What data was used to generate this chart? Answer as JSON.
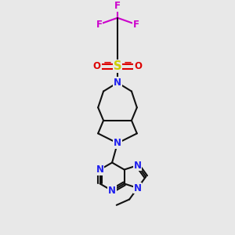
{
  "bg": "#e8e8e8",
  "bond_color": "#111111",
  "N_color": "#2020ee",
  "O_color": "#dd0000",
  "S_color": "#cccc00",
  "F_color": "#cc00cc",
  "bond_lw": 1.5,
  "font_size": 8.5,
  "fig_w": 3.0,
  "fig_h": 3.0,
  "dpi": 100,
  "xlim": [
    2.5,
    7.5
  ],
  "ylim": [
    0.5,
    11.0
  ]
}
